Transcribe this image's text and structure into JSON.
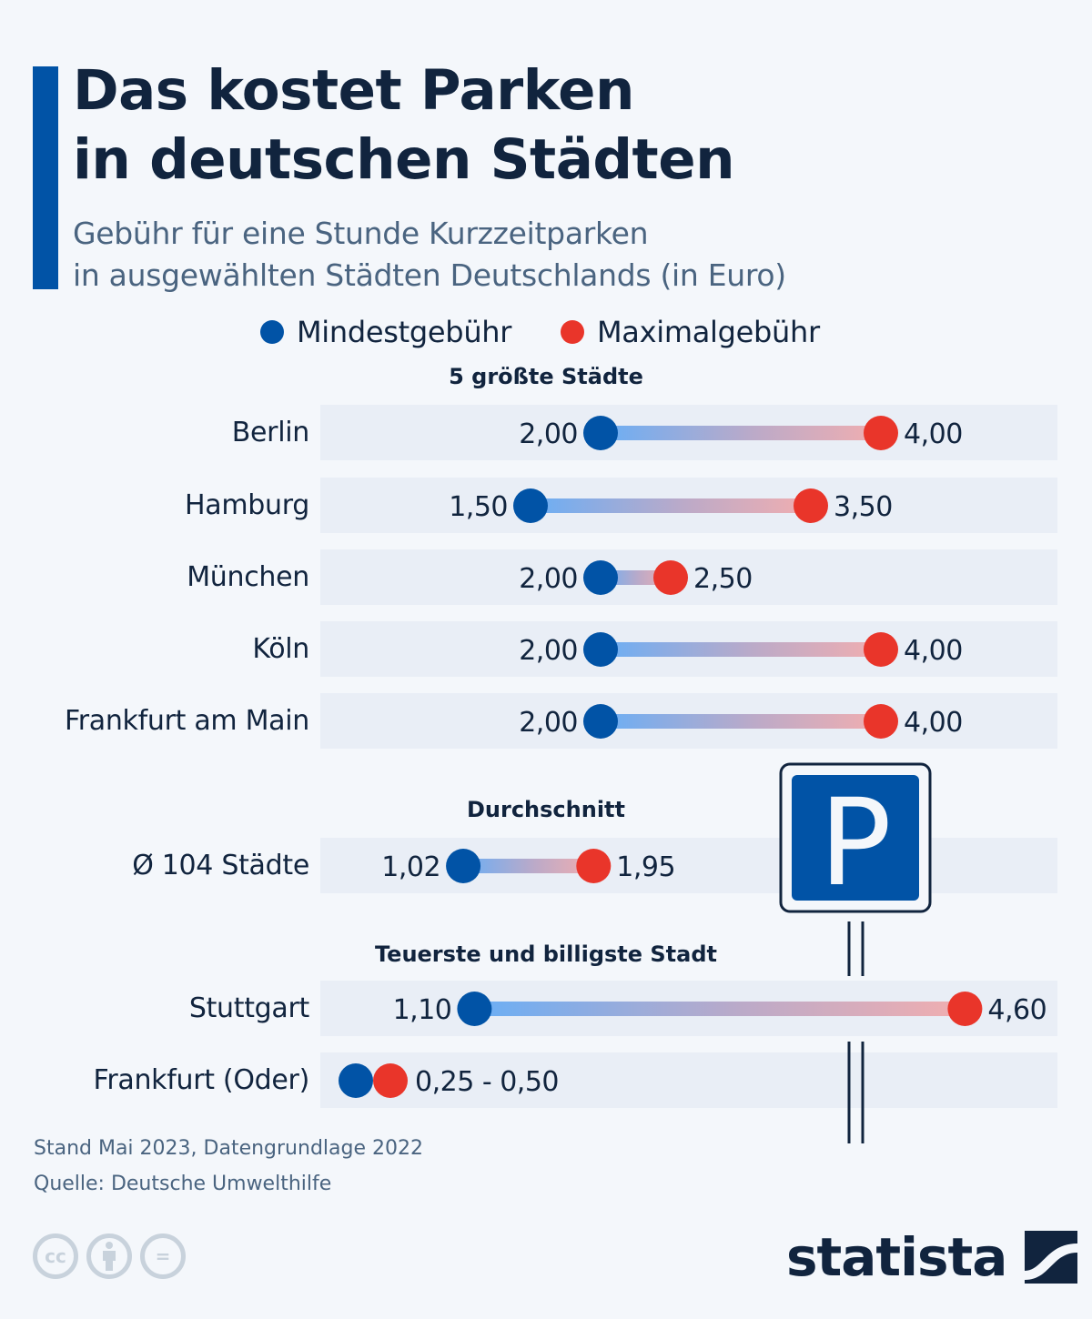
{
  "header": {
    "title_lines": [
      "Das kostet Parken",
      "in deutschen Städten"
    ],
    "subtitle_lines": [
      "Gebühr für eine Stunde Kurzzeitparken",
      "in ausgewählten Städten Deutschlands (in Euro)"
    ]
  },
  "legend": {
    "min": {
      "label": "Mindestgebühr",
      "color": "#0153a6"
    },
    "max": {
      "label": "Maximalgebühr",
      "color": "#e9352a"
    }
  },
  "sections": {
    "largest": "5 größte Städte",
    "average": "Durchschnitt",
    "extremes": "Teuerste und billigste Stadt"
  },
  "chart_data": {
    "type": "dumbbell",
    "title": "Das kostet Parken in deutschen Städten",
    "subtitle": "Gebühr für eine Stunde Kurzzeitparken in ausgewählten Städten Deutschlands (in Euro)",
    "unit": "Euro",
    "xlim": [
      0,
      5.26
    ],
    "series": [
      {
        "name": "Mindestgebühr",
        "color": "#0153a6"
      },
      {
        "name": "Maximalgebühr",
        "color": "#e9352a"
      }
    ],
    "rows": [
      {
        "section": "5 größte Städte",
        "city": "Berlin",
        "min": 2.0,
        "max": 4.0,
        "min_label": "2,00",
        "max_label": "4,00"
      },
      {
        "section": "5 größte Städte",
        "city": "Hamburg",
        "min": 1.5,
        "max": 3.5,
        "min_label": "1,50",
        "max_label": "3,50"
      },
      {
        "section": "5 größte Städte",
        "city": "München",
        "min": 2.0,
        "max": 2.5,
        "min_label": "2,00",
        "max_label": "2,50"
      },
      {
        "section": "5 größte Städte",
        "city": "Köln",
        "min": 2.0,
        "max": 4.0,
        "min_label": "2,00",
        "max_label": "4,00"
      },
      {
        "section": "5 größte Städte",
        "city": "Frankfurt am Main",
        "min": 2.0,
        "max": 4.0,
        "min_label": "2,00",
        "max_label": "4,00"
      },
      {
        "section": "Durchschnitt",
        "city": "Ø 104 Städte",
        "min": 1.02,
        "max": 1.95,
        "min_label": "1,02",
        "max_label": "1,95"
      },
      {
        "section": "Teuerste und billigste Stadt",
        "city": "Stuttgart",
        "min": 1.1,
        "max": 4.6,
        "min_label": "1,10",
        "max_label": "4,60"
      },
      {
        "section": "Teuerste und billigste Stadt",
        "city": "Frankfurt (Oder)",
        "min": 0.25,
        "max": 0.5,
        "combined_label": "0,25 - 0,50"
      }
    ]
  },
  "illustration": {
    "sign_letter": "P",
    "icon": "parking-sign-icon"
  },
  "footer": {
    "note": "Stand Mai 2023, Datengrundlage 2022",
    "source": "Quelle: Deutsche Umwelthilfe",
    "license_icons": [
      "cc-icon",
      "by-icon",
      "nd-icon"
    ],
    "cc_text": "cc",
    "nd_text": "=",
    "brand": "statista"
  }
}
